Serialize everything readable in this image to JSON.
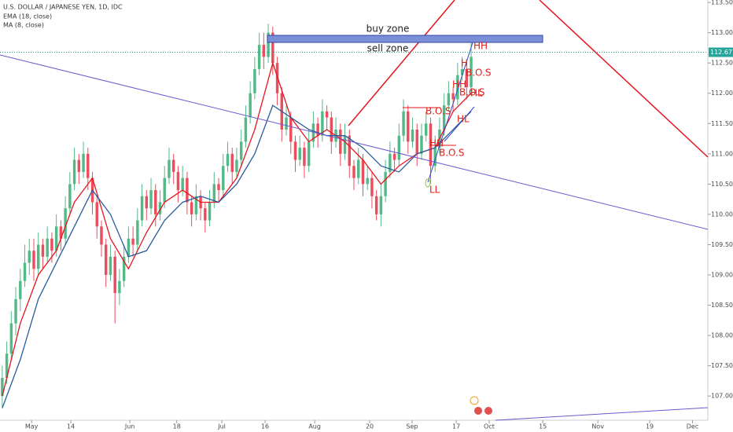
{
  "chart_data": {
    "type": "candlestick",
    "title": "U.S. DOLLAR / JAPANESE YEN, 1D, IDC",
    "up_color": "#53b987",
    "down_color": "#eb4d5c",
    "x": [
      0,
      1,
      2,
      3,
      4,
      5,
      6,
      7,
      8,
      9,
      10,
      11,
      12,
      13,
      14,
      15,
      16,
      17,
      18,
      19,
      20,
      21,
      22,
      23,
      24,
      25,
      26,
      27,
      28,
      29,
      30,
      31,
      32,
      33,
      34,
      35,
      36,
      37,
      38,
      39,
      40,
      41,
      42,
      43,
      44,
      45,
      46,
      47,
      48,
      49,
      50,
      51,
      52,
      53,
      54,
      55,
      56,
      57,
      58,
      59,
      60,
      61,
      62,
      63,
      64,
      65,
      66,
      67,
      68,
      69,
      70,
      71,
      72,
      73,
      74,
      75,
      76,
      77,
      78,
      79,
      80,
      81,
      82,
      83,
      84,
      85,
      86,
      87,
      88,
      89,
      90,
      91,
      92,
      93,
      94,
      95,
      96,
      97,
      98,
      99,
      100,
      101,
      102,
      103,
      104
    ],
    "open": [
      107.0,
      107.3,
      107.7,
      108.2,
      108.6,
      108.9,
      109.2,
      109.4,
      109.1,
      109.5,
      109.3,
      109.6,
      109.4,
      109.8,
      109.6,
      110.1,
      110.5,
      110.9,
      110.7,
      111.0,
      110.6,
      110.2,
      109.8,
      109.5,
      109.0,
      109.3,
      108.7,
      108.9,
      109.3,
      109.6,
      109.5,
      109.9,
      110.3,
      110.1,
      110.4,
      110.0,
      110.2,
      110.6,
      110.9,
      110.7,
      110.4,
      110.6,
      110.2,
      110.0,
      110.3,
      110.1,
      109.9,
      110.2,
      110.5,
      110.4,
      110.8,
      111.0,
      110.7,
      110.9,
      111.2,
      111.6,
      112.0,
      112.4,
      112.8,
      112.6,
      113.0,
      112.5,
      112.0,
      111.4,
      111.6,
      111.2,
      110.9,
      111.1,
      110.8,
      111.2,
      111.5,
      111.3,
      111.7,
      111.6,
      111.2,
      111.4,
      111.0,
      111.3,
      110.8,
      110.6,
      110.9,
      110.5,
      110.6,
      110.3,
      110.0,
      110.3,
      110.7,
      111.0,
      110.9,
      111.3,
      111.7,
      111.2,
      111.4,
      111.0,
      111.3,
      111.5,
      110.8,
      111.1,
      111.4,
      111.8,
      112.0,
      111.9,
      112.3,
      112.4,
      112.1
    ],
    "high": [
      107.5,
      107.9,
      108.4,
      108.8,
      109.1,
      109.5,
      109.6,
      109.6,
      109.7,
      109.6,
      109.8,
      109.7,
      110.0,
      109.9,
      110.3,
      110.7,
      111.1,
      111.0,
      111.2,
      111.1,
      110.7,
      110.3,
      109.9,
      109.6,
      109.5,
      109.4,
      109.1,
      109.5,
      109.8,
      109.8,
      110.1,
      110.5,
      110.4,
      110.6,
      110.5,
      110.4,
      110.8,
      111.1,
      111.0,
      110.8,
      110.8,
      110.7,
      110.3,
      110.5,
      110.4,
      110.2,
      110.4,
      110.7,
      110.6,
      111.0,
      111.2,
      111.1,
      111.1,
      111.4,
      111.8,
      112.2,
      112.6,
      113.0,
      113.0,
      113.15,
      113.1,
      112.6,
      112.1,
      111.8,
      111.7,
      111.3,
      111.3,
      111.2,
      111.4,
      111.7,
      111.6,
      111.9,
      111.8,
      111.7,
      111.6,
      111.5,
      111.5,
      111.4,
      110.9,
      111.1,
      111.0,
      110.8,
      110.7,
      110.4,
      110.5,
      110.9,
      111.2,
      111.1,
      111.5,
      111.9,
      111.8,
      111.6,
      111.5,
      111.5,
      111.7,
      111.6,
      111.3,
      111.6,
      112.0,
      112.2,
      112.1,
      112.5,
      112.6,
      112.5,
      112.9
    ],
    "low": [
      106.8,
      107.2,
      107.6,
      108.0,
      108.4,
      108.8,
      109.0,
      108.9,
      109.0,
      109.1,
      109.2,
      109.2,
      109.3,
      109.4,
      109.5,
      110.0,
      110.4,
      110.5,
      110.6,
      110.4,
      110.0,
      109.6,
      109.3,
      108.8,
      108.9,
      108.2,
      108.5,
      108.8,
      109.2,
      109.3,
      109.4,
      109.8,
      109.9,
      110.0,
      109.8,
      109.9,
      110.1,
      110.5,
      110.5,
      110.2,
      110.3,
      110.0,
      109.8,
      109.9,
      109.9,
      109.7,
      109.8,
      110.1,
      110.2,
      110.3,
      110.7,
      110.5,
      110.6,
      110.8,
      111.1,
      111.5,
      111.9,
      112.3,
      112.4,
      112.5,
      112.3,
      111.8,
      111.2,
      111.3,
      111.0,
      110.7,
      110.8,
      110.6,
      110.7,
      111.1,
      111.1,
      111.2,
      111.4,
      111.0,
      111.1,
      110.8,
      110.9,
      110.6,
      110.4,
      110.5,
      110.3,
      110.4,
      110.1,
      109.9,
      109.8,
      110.2,
      110.6,
      110.7,
      110.8,
      111.2,
      111.0,
      111.1,
      110.8,
      110.9,
      111.2,
      110.5,
      110.7,
      111.0,
      111.3,
      111.7,
      111.7,
      111.8,
      112.2,
      111.9,
      112.0
    ],
    "close": [
      107.3,
      107.7,
      108.2,
      108.6,
      108.9,
      109.2,
      109.4,
      109.1,
      109.5,
      109.3,
      109.6,
      109.4,
      109.8,
      109.6,
      110.1,
      110.5,
      110.9,
      110.7,
      111.0,
      110.6,
      110.2,
      109.8,
      109.5,
      109.0,
      109.3,
      108.7,
      108.9,
      109.3,
      109.6,
      109.5,
      109.9,
      110.3,
      110.1,
      110.4,
      110.0,
      110.2,
      110.6,
      110.9,
      110.7,
      110.4,
      110.6,
      110.2,
      110.0,
      110.3,
      110.1,
      109.9,
      110.2,
      110.5,
      110.4,
      110.8,
      111.0,
      110.7,
      110.9,
      111.2,
      111.6,
      112.0,
      112.4,
      112.8,
      112.6,
      113.0,
      112.5,
      112.0,
      111.4,
      111.6,
      111.2,
      110.9,
      111.1,
      110.8,
      111.2,
      111.5,
      111.3,
      111.7,
      111.6,
      111.2,
      111.4,
      111.0,
      111.3,
      110.8,
      110.6,
      110.9,
      110.5,
      110.6,
      110.3,
      110.0,
      110.3,
      110.7,
      111.0,
      110.9,
      111.3,
      111.7,
      111.2,
      111.4,
      111.0,
      111.3,
      111.5,
      110.8,
      111.1,
      111.4,
      111.8,
      112.0,
      111.9,
      112.3,
      112.4,
      112.1,
      112.6
    ],
    "lines": [
      {
        "name": "EMA (18, close)",
        "color": "#e8141e",
        "x": [
          0,
          4,
          8,
          12,
          16,
          20,
          24,
          28,
          32,
          36,
          40,
          44,
          48,
          52,
          56,
          60,
          64,
          68,
          72,
          76,
          80,
          84,
          88,
          92,
          96,
          100,
          104
        ],
        "values": [
          107.0,
          108.2,
          109.0,
          109.4,
          110.2,
          110.6,
          109.6,
          109.1,
          109.7,
          110.2,
          110.4,
          110.2,
          110.2,
          110.6,
          111.4,
          112.5,
          111.6,
          111.2,
          111.4,
          111.2,
          110.9,
          110.5,
          110.8,
          111.0,
          111.1,
          111.7,
          112.0
        ]
      },
      {
        "name": "MA (8, close)",
        "color": "#2a5a9e",
        "x": [
          0,
          4,
          8,
          12,
          16,
          20,
          24,
          28,
          32,
          36,
          40,
          44,
          48,
          52,
          56,
          60,
          64,
          68,
          72,
          76,
          80,
          84,
          88,
          92,
          96,
          100,
          104
        ],
        "values": [
          106.8,
          107.6,
          108.6,
          109.2,
          109.8,
          110.4,
          110.0,
          109.3,
          109.4,
          109.9,
          110.2,
          110.3,
          110.2,
          110.5,
          111.0,
          111.8,
          111.6,
          111.4,
          111.3,
          111.3,
          111.1,
          110.8,
          110.7,
          111.0,
          111.1,
          111.4,
          111.7
        ]
      }
    ],
    "last_price": 112.677,
    "ylim": [
      106.6,
      113.54
    ],
    "yticks": [
      {
        "value": 107,
        "label": "107.000"
      },
      {
        "value": 107.5,
        "label": "107.500"
      },
      {
        "value": 108,
        "label": "108.000"
      },
      {
        "value": 108.5,
        "label": "108.500"
      },
      {
        "value": 109,
        "label": "109.000"
      },
      {
        "value": 109.5,
        "label": "109.500"
      },
      {
        "value": 110,
        "label": "110.000"
      },
      {
        "value": 110.5,
        "label": "110.500"
      },
      {
        "value": 111,
        "label": "111.000"
      },
      {
        "value": 111.5,
        "label": "111.500"
      },
      {
        "value": 112,
        "label": "112.000"
      },
      {
        "value": 112.5,
        "label": "112.500"
      },
      {
        "value": 113,
        "label": "113.000"
      },
      {
        "value": 113.5,
        "label": "113.500"
      }
    ],
    "xlim": [
      -0.5,
      156.5
    ],
    "xticks": [
      {
        "value": 6.5,
        "label": "May"
      },
      {
        "value": 15.2,
        "label": "14"
      },
      {
        "value": 28.3,
        "label": "Jun"
      },
      {
        "value": 38.7,
        "label": "18"
      },
      {
        "value": 48.7,
        "label": "Jul"
      },
      {
        "value": 58.3,
        "label": "16"
      },
      {
        "value": 69.3,
        "label": "Aug"
      },
      {
        "value": 81.5,
        "label": "20"
      },
      {
        "value": 90.9,
        "label": "Sep"
      },
      {
        "value": 100.7,
        "label": "17"
      },
      {
        "value": 108,
        "label": "Oct"
      },
      {
        "value": 119.9,
        "label": "15"
      },
      {
        "value": 132.1,
        "label": "Nov"
      },
      {
        "value": 143.6,
        "label": "19"
      },
      {
        "value": 153.1,
        "label": "Dec"
      }
    ],
    "annotations": [
      "buy zone",
      "sell zone",
      "HH",
      "H",
      "B.O.S",
      "HH",
      "B.O.S",
      "HL",
      "B.O.S",
      "HL",
      "HH",
      "B.O.S",
      "LL"
    ]
  }
}
